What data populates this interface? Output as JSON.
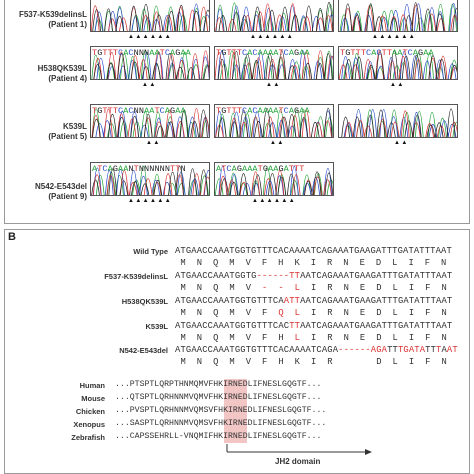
{
  "panel_a": {
    "rows": [
      {
        "label_line1": "F537-K539delinsL",
        "label_line2": "(Patient 1)",
        "seqs": [
          "",
          "",
          ""
        ],
        "markers": [
          "▲▲▲▲▲▲",
          "▲▲▲▲▲▲",
          "▲▲▲▲▲▲"
        ]
      },
      {
        "label_line1": "H538QK539L",
        "label_line2": "(Patient 4)",
        "seqs": [
          "TGTTTCACNNNAATCAGAA",
          "TGTTTCACAAAATCAGAA",
          "TGTTTCACTTAATCAGAA"
        ],
        "markers": [
          "▲▲",
          "▲▲",
          "▲▲"
        ]
      },
      {
        "label_line1": "K539L",
        "label_line2": "(Patient 5)",
        "seqs": [
          "TGTTTCACNNAATCAGAA",
          "TGTTTCACAAAATCAGAA",
          ""
        ],
        "markers": [
          "▲▲",
          "▲▲",
          "▲▲"
        ]
      },
      {
        "label_line1": "N542-E543del",
        "label_line2": "(Patient 9)",
        "seqs": [
          "ATCAGAANTNNNNNNTTN",
          "ATCAGAAATGAAGATTT",
          ""
        ],
        "markers": [
          "▲▲▲▲▲▲",
          "▲▲▲▲▲▲",
          ""
        ]
      }
    ]
  },
  "panel_b": {
    "letter": "B",
    "alignment": [
      {
        "name": "Wild Type",
        "dna": "ATGAACCAAATGGTGTTTCACAAAATCAGAAATGAAGATTTGATATTTAAT",
        "aa": " M  N  Q  M  V  F  H  K  I  R  N  E  D  L  I  F  N"
      },
      {
        "name": "F537-K539delinsL",
        "dna": "ATGAACCAAATGGTG------TTAATCAGAAATGAAGATTTGATATTTAAT",
        "aa": " M  N  Q  M  V  -  -  L  I  R  N  E  D  L  I  F  N"
      },
      {
        "name": "H538QK539L",
        "dna": "ATGAACCAAATGGTGTTTCAATTAATCAGAAATGAAGATTTGATATTTAAT",
        "aa": " M  N  Q  M  V  F  Q  L  I  R  N  E  D  L  I  F  N"
      },
      {
        "name": "K539L",
        "dna": "ATGAACCAAATGGTGTTTCACTTAATCAGAAATGAAGATTTGATATTTAAT",
        "aa": " M  N  Q  M  V  F  H  L  I  R  N  E  D  L  I  F  N"
      },
      {
        "name": "N542-E543del",
        "dna": "ATGAACCAAATGGTGTTTCACAAAATCAGA------AGATTTGATATTTAAT",
        "aa": " M  N  Q  M  V  F  H  K  I  R        D  L  I  F  N"
      }
    ],
    "species": [
      {
        "name": "Human",
        "seq": "...PTSPTLQRPTHNMQMVFHKIRNEDLIFNESLGQGTF..."
      },
      {
        "name": "Mouse",
        "seq": "...QTSPTLQRHNNMVQMVFHKIRNEDLIFNESLGQGTF..."
      },
      {
        "name": "Chicken",
        "seq": "...PVSPTLQRHNNMVQMSVFHKIRNEDLIFNESLGQGTF..."
      },
      {
        "name": "Xenopus",
        "seq": "...SASPTLQRHNNMVQMSVFHKIRNEDLIFNESLGQGTF..."
      },
      {
        "name": "Zebrafish",
        "seq": "...CAPSSEHRLL-VNQMIFHKIRNEDLIFNESLGQGTF..."
      }
    ],
    "domain_label": "JH2 domain"
  },
  "colors": {
    "trace_green": "#22a33a",
    "trace_blue": "#2a4ccc",
    "trace_red": "#d83030",
    "trace_black": "#222222",
    "mutation_red": "#d33333",
    "highlight": "#f3c6c6"
  }
}
